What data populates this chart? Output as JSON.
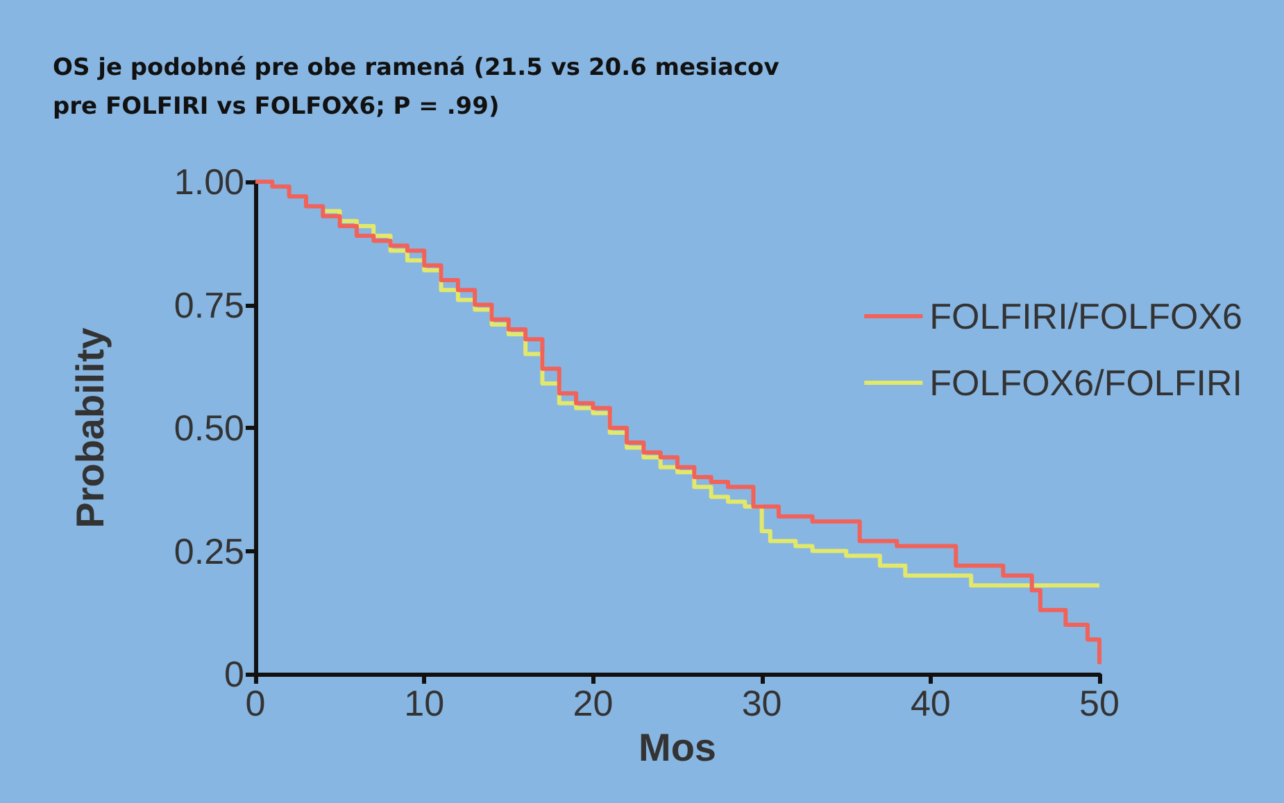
{
  "chart_data": {
    "type": "step",
    "title": "OS je podobné pre obe ramená (21.5 vs 20.6 mesiacov\npre FOLFIRI vs FOLFOX6; P = .99)",
    "xlabel": "Mos",
    "ylabel": "Probability",
    "xlim": [
      0,
      50
    ],
    "xticks": [
      0,
      10,
      20,
      30,
      40,
      50
    ],
    "ylim": [
      0,
      1
    ],
    "yticks": [
      {
        "value": 0,
        "label": "0"
      },
      {
        "value": 0.25,
        "label": "0.25"
      },
      {
        "value": 0.5,
        "label": "0.50"
      },
      {
        "value": 0.75,
        "label": "0.75"
      },
      {
        "value": 1,
        "label": "1.00"
      }
    ],
    "grid": false,
    "legend": "right",
    "marker": "none",
    "line_style": "solid",
    "series": [
      {
        "name": "FOLFIRI/FOLFOX6",
        "color": "#f0625a",
        "x": [
          0,
          1,
          2,
          3,
          4,
          5,
          6,
          7,
          8,
          9,
          10,
          11,
          12,
          13,
          14,
          15,
          16,
          17,
          18,
          19,
          20,
          21,
          22,
          23,
          24,
          25,
          26,
          27,
          28,
          29.5,
          31,
          33,
          35.8,
          38,
          40,
          41.5,
          44.3,
          46,
          46.5,
          48,
          49.3,
          50
        ],
        "values": [
          1.0,
          0.99,
          0.97,
          0.95,
          0.93,
          0.91,
          0.89,
          0.88,
          0.87,
          0.86,
          0.83,
          0.8,
          0.78,
          0.75,
          0.72,
          0.7,
          0.68,
          0.62,
          0.57,
          0.55,
          0.54,
          0.5,
          0.47,
          0.45,
          0.44,
          0.42,
          0.4,
          0.39,
          0.38,
          0.34,
          0.32,
          0.31,
          0.27,
          0.26,
          0.26,
          0.22,
          0.2,
          0.17,
          0.13,
          0.1,
          0.07,
          0.02
        ]
      },
      {
        "name": "FOLFOX6/FOLFIRI",
        "color": "#e2e86a",
        "x": [
          4,
          5,
          6,
          7,
          8,
          9,
          10,
          11,
          12,
          13,
          14,
          15,
          16,
          17,
          18,
          19,
          20,
          21,
          22,
          23,
          24,
          25,
          26,
          27,
          28,
          29,
          30,
          30.5,
          32,
          33,
          35,
          37,
          38.5,
          42.4,
          50
        ],
        "values": [
          0.94,
          0.92,
          0.91,
          0.89,
          0.86,
          0.84,
          0.82,
          0.78,
          0.76,
          0.74,
          0.71,
          0.69,
          0.65,
          0.59,
          0.55,
          0.54,
          0.53,
          0.49,
          0.46,
          0.44,
          0.42,
          0.41,
          0.38,
          0.36,
          0.35,
          0.34,
          0.29,
          0.27,
          0.26,
          0.25,
          0.24,
          0.22,
          0.2,
          0.18,
          0.18
        ]
      }
    ]
  }
}
